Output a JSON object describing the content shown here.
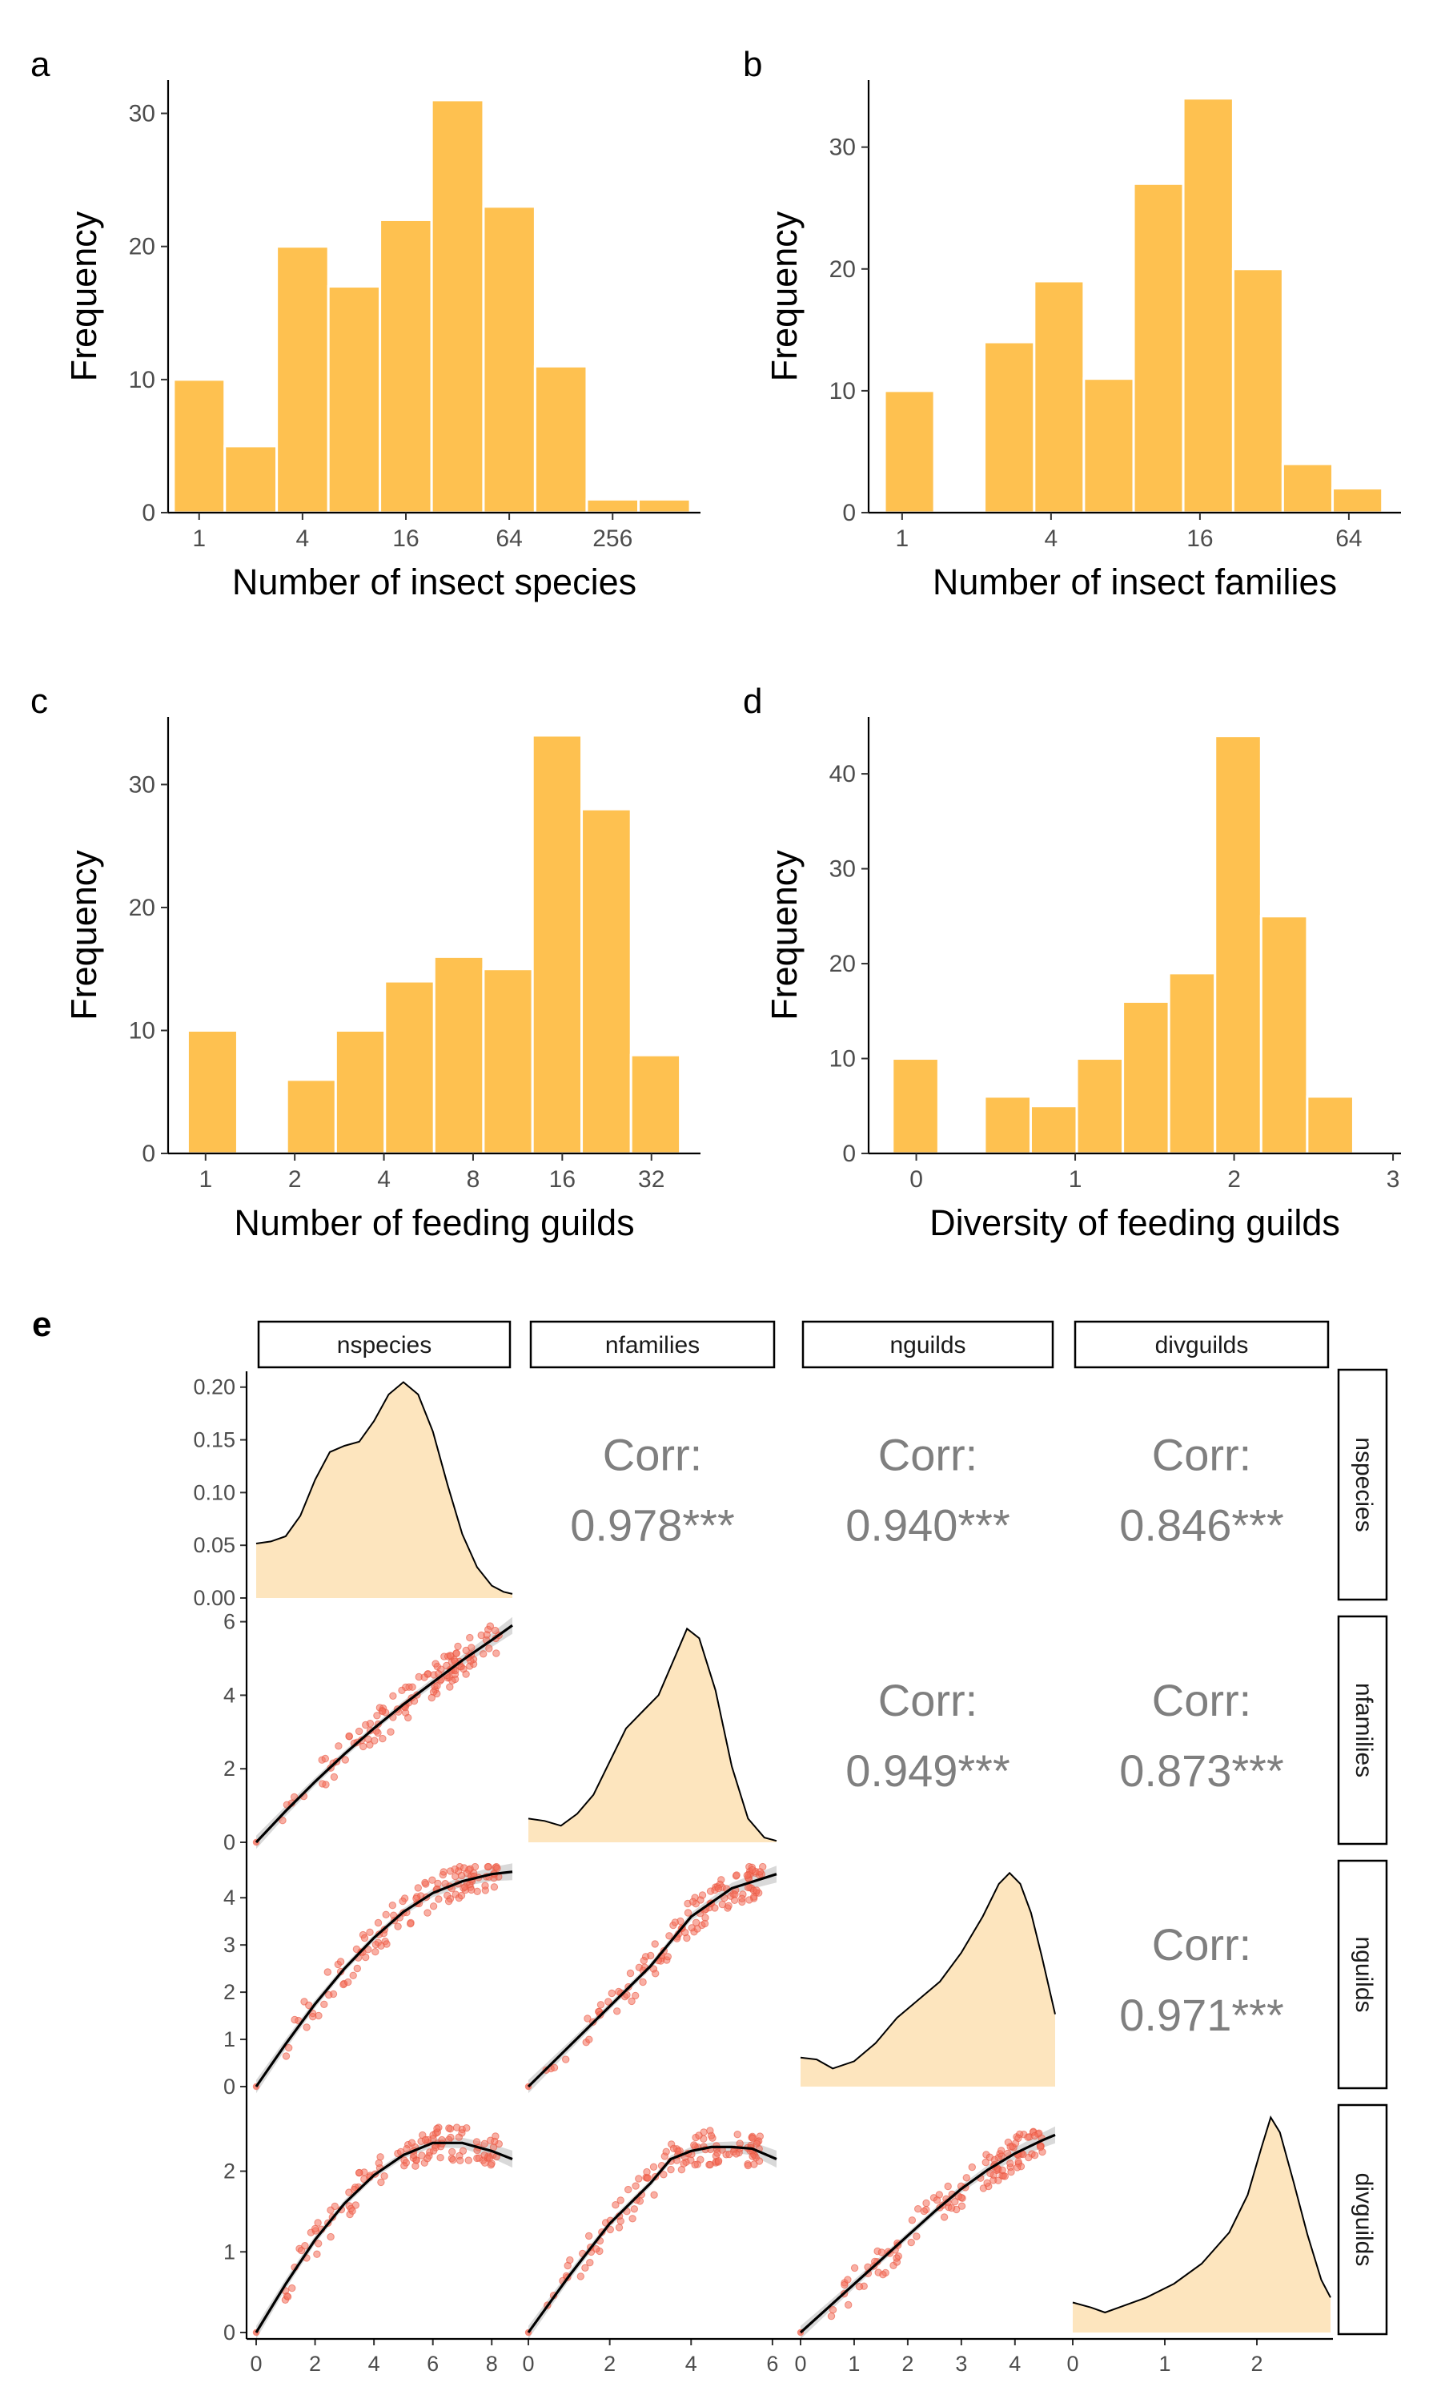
{
  "chart_data": [
    {
      "panel": "a",
      "type": "bar",
      "xlabel": "Number of insect species",
      "ylabel": "Frequency",
      "x_scale": "log2",
      "x_ticks": [
        1,
        4,
        16,
        64,
        256
      ],
      "y_ticks": [
        0,
        10,
        20,
        30
      ],
      "ylim": [
        0,
        32.5
      ],
      "bins": [
        {
          "from": 0.71,
          "to": 1.41,
          "count": 10
        },
        {
          "from": 1.41,
          "to": 2.83,
          "count": 5
        },
        {
          "from": 2.83,
          "to": 5.66,
          "count": 20
        },
        {
          "from": 5.66,
          "to": 11.3,
          "count": 17
        },
        {
          "from": 11.3,
          "to": 22.6,
          "count": 22
        },
        {
          "from": 22.6,
          "to": 45.3,
          "count": 31
        },
        {
          "from": 45.3,
          "to": 90.5,
          "count": 23
        },
        {
          "from": 90.5,
          "to": 181,
          "count": 11
        },
        {
          "from": 181,
          "to": 362,
          "count": 1
        },
        {
          "from": 362,
          "to": 724,
          "count": 1
        }
      ]
    },
    {
      "panel": "b",
      "type": "bar",
      "xlabel": "Number of insect families",
      "ylabel": "Frequency",
      "x_scale": "log2",
      "x_ticks": [
        1,
        4,
        16,
        64
      ],
      "y_ticks": [
        0,
        10,
        20,
        30
      ],
      "ylim": [
        0,
        35.5
      ],
      "bins": [
        {
          "from": 0.85,
          "to": 1.35,
          "count": 10
        },
        {
          "from": 1.35,
          "to": 2.15,
          "count": 0
        },
        {
          "from": 2.15,
          "to": 3.42,
          "count": 14
        },
        {
          "from": 3.42,
          "to": 5.43,
          "count": 19
        },
        {
          "from": 5.43,
          "to": 8.63,
          "count": 11
        },
        {
          "from": 8.63,
          "to": 13.7,
          "count": 27
        },
        {
          "from": 13.7,
          "to": 21.8,
          "count": 34
        },
        {
          "from": 21.8,
          "to": 34.6,
          "count": 20
        },
        {
          "from": 34.6,
          "to": 55.0,
          "count": 4
        },
        {
          "from": 55.0,
          "to": 87.4,
          "count": 2
        }
      ]
    },
    {
      "panel": "c",
      "type": "bar",
      "xlabel": "Number of feeding guilds",
      "ylabel": "Frequency",
      "x_scale": "log2",
      "x_ticks": [
        1,
        2,
        4,
        8,
        16,
        32
      ],
      "y_ticks": [
        0,
        10,
        20,
        30
      ],
      "ylim": [
        0,
        35.5
      ],
      "bins": [
        {
          "from": 0.87,
          "to": 1.28,
          "count": 10
        },
        {
          "from": 1.28,
          "to": 1.88,
          "count": 0
        },
        {
          "from": 1.88,
          "to": 2.75,
          "count": 6
        },
        {
          "from": 2.75,
          "to": 4.03,
          "count": 10
        },
        {
          "from": 4.03,
          "to": 5.91,
          "count": 14
        },
        {
          "from": 5.91,
          "to": 8.67,
          "count": 16
        },
        {
          "from": 8.67,
          "to": 12.7,
          "count": 15
        },
        {
          "from": 12.7,
          "to": 18.6,
          "count": 34
        },
        {
          "from": 18.6,
          "to": 27.3,
          "count": 28
        },
        {
          "from": 27.3,
          "to": 40.0,
          "count": 8
        }
      ]
    },
    {
      "panel": "d",
      "type": "bar",
      "xlabel": "Diversity of feeding guilds",
      "ylabel": "Frequency",
      "x_scale": "linear",
      "x_ticks": [
        0,
        1,
        2,
        3
      ],
      "y_ticks": [
        0,
        10,
        20,
        30,
        40
      ],
      "ylim": [
        0,
        46
      ],
      "bins": [
        {
          "from": -0.15,
          "to": 0.14,
          "count": 10
        },
        {
          "from": 0.14,
          "to": 0.43,
          "count": 0
        },
        {
          "from": 0.43,
          "to": 0.72,
          "count": 6
        },
        {
          "from": 0.72,
          "to": 1.01,
          "count": 5
        },
        {
          "from": 1.01,
          "to": 1.3,
          "count": 10
        },
        {
          "from": 1.3,
          "to": 1.59,
          "count": 16
        },
        {
          "from": 1.59,
          "to": 1.88,
          "count": 19
        },
        {
          "from": 1.88,
          "to": 2.17,
          "count": 44
        },
        {
          "from": 2.17,
          "to": 2.46,
          "count": 25
        },
        {
          "from": 2.46,
          "to": 2.75,
          "count": 6
        }
      ]
    },
    {
      "panel": "e",
      "type": "scatter",
      "variables": [
        "nspecies",
        "nfamilies",
        "nguilds",
        "divguilds"
      ],
      "ranges": [
        [
          0,
          8.7
        ],
        [
          0,
          6.1
        ],
        [
          0,
          4.75
        ],
        [
          0,
          2.8
        ]
      ],
      "x_ticks": [
        [
          0,
          2,
          4,
          6,
          8
        ],
        [
          0,
          2,
          4,
          6
        ],
        [
          0,
          1,
          2,
          3,
          4
        ],
        [
          0,
          1,
          2
        ]
      ],
      "y_ticks": [
        [
          0.0,
          0.05,
          0.1,
          0.15,
          0.2
        ],
        [
          0,
          2,
          4,
          6
        ],
        [
          0,
          1,
          2,
          3,
          4
        ],
        [
          0,
          1,
          2
        ]
      ],
      "y_tick_labels": [
        [
          "0.00",
          "0.05",
          "0.10",
          "0.15",
          "0.20"
        ],
        [
          "0",
          "2",
          "4",
          "6"
        ],
        [
          "0",
          "1",
          "2",
          "3",
          "4"
        ],
        [
          "0",
          "1",
          "2"
        ]
      ],
      "density_ylim": [
        0,
        0.215
      ],
      "densities": [
        {
          "x": [
            0,
            0.5,
            1,
            1.5,
            2,
            2.5,
            3,
            3.5,
            4,
            4.5,
            5,
            5.5,
            6,
            6.5,
            7,
            7.5,
            8,
            8.4,
            8.7
          ],
          "y": [
            0.053,
            0.055,
            0.06,
            0.08,
            0.115,
            0.142,
            0.148,
            0.152,
            0.172,
            0.198,
            0.21,
            0.198,
            0.162,
            0.11,
            0.062,
            0.03,
            0.012,
            0.006,
            0.004
          ]
        },
        {
          "x": [
            0,
            0.4,
            0.8,
            1.2,
            1.6,
            2,
            2.4,
            2.8,
            3.2,
            3.6,
            3.9,
            4.2,
            4.6,
            5,
            5.4,
            5.8,
            6.1
          ],
          "y": [
            0.05,
            0.045,
            0.035,
            0.06,
            0.1,
            0.17,
            0.24,
            0.275,
            0.31,
            0.39,
            0.45,
            0.43,
            0.32,
            0.16,
            0.05,
            0.01,
            0.003
          ]
        },
        {
          "x": [
            0,
            0.3,
            0.6,
            1,
            1.4,
            1.8,
            2.2,
            2.6,
            3,
            3.4,
            3.7,
            3.9,
            4.1,
            4.3,
            4.5,
            4.75
          ],
          "y": [
            0.08,
            0.075,
            0.05,
            0.07,
            0.12,
            0.19,
            0.24,
            0.29,
            0.37,
            0.47,
            0.56,
            0.59,
            0.56,
            0.48,
            0.36,
            0.2
          ]
        },
        {
          "x": [
            0,
            0.2,
            0.35,
            0.5,
            0.8,
            1.1,
            1.4,
            1.7,
            1.9,
            2.05,
            2.15,
            2.25,
            2.4,
            2.55,
            2.7,
            2.8
          ],
          "y": [
            0.24,
            0.2,
            0.16,
            0.2,
            0.28,
            0.39,
            0.55,
            0.8,
            1.1,
            1.48,
            1.72,
            1.6,
            1.2,
            0.78,
            0.42,
            0.28
          ]
        }
      ],
      "correlations": [
        {
          "row": 1,
          "col": 2,
          "label": "Corr:",
          "value": "0.978***"
        },
        {
          "row": 1,
          "col": 3,
          "label": "Corr:",
          "value": "0.940***"
        },
        {
          "row": 1,
          "col": 4,
          "label": "Corr:",
          "value": "0.846***"
        },
        {
          "row": 2,
          "col": 3,
          "label": "Corr:",
          "value": "0.949***"
        },
        {
          "row": 2,
          "col": 4,
          "label": "Corr:",
          "value": "0.873***"
        },
        {
          "row": 3,
          "col": 4,
          "label": "Corr:",
          "value": "0.971***"
        }
      ],
      "smooth": [
        {
          "row": 2,
          "col": 1,
          "x": [
            0,
            1,
            2,
            3,
            4,
            5,
            6,
            7,
            8,
            8.7
          ],
          "y": [
            0,
            0.85,
            1.65,
            2.4,
            3.1,
            3.75,
            4.35,
            4.95,
            5.5,
            5.9
          ]
        },
        {
          "row": 3,
          "col": 1,
          "x": [
            0,
            1,
            2,
            3,
            4,
            5,
            6,
            7,
            8,
            8.7
          ],
          "y": [
            0,
            0.9,
            1.75,
            2.5,
            3.15,
            3.7,
            4.1,
            4.35,
            4.5,
            4.55
          ]
        },
        {
          "row": 3,
          "col": 2,
          "x": [
            0,
            1,
            2,
            3,
            4,
            5,
            6.1
          ],
          "y": [
            0,
            0.85,
            1.7,
            2.55,
            3.6,
            4.2,
            4.5
          ]
        },
        {
          "row": 4,
          "col": 1,
          "x": [
            0,
            1,
            2,
            3,
            4,
            5,
            6,
            7,
            8,
            8.7
          ],
          "y": [
            0,
            0.6,
            1.15,
            1.6,
            1.95,
            2.2,
            2.35,
            2.35,
            2.25,
            2.15
          ]
        },
        {
          "row": 4,
          "col": 2,
          "x": [
            0,
            1,
            2,
            3,
            3.5,
            4,
            4.5,
            5,
            5.5,
            6.1
          ],
          "y": [
            0,
            0.7,
            1.35,
            1.85,
            2.15,
            2.25,
            2.3,
            2.3,
            2.28,
            2.15
          ]
        },
        {
          "row": 4,
          "col": 3,
          "x": [
            0,
            0.5,
            1,
            1.5,
            2,
            2.5,
            3,
            3.5,
            4,
            4.5,
            4.75
          ],
          "y": [
            0,
            0.3,
            0.6,
            0.9,
            1.2,
            1.5,
            1.78,
            2.02,
            2.22,
            2.38,
            2.45
          ]
        }
      ]
    }
  ]
}
